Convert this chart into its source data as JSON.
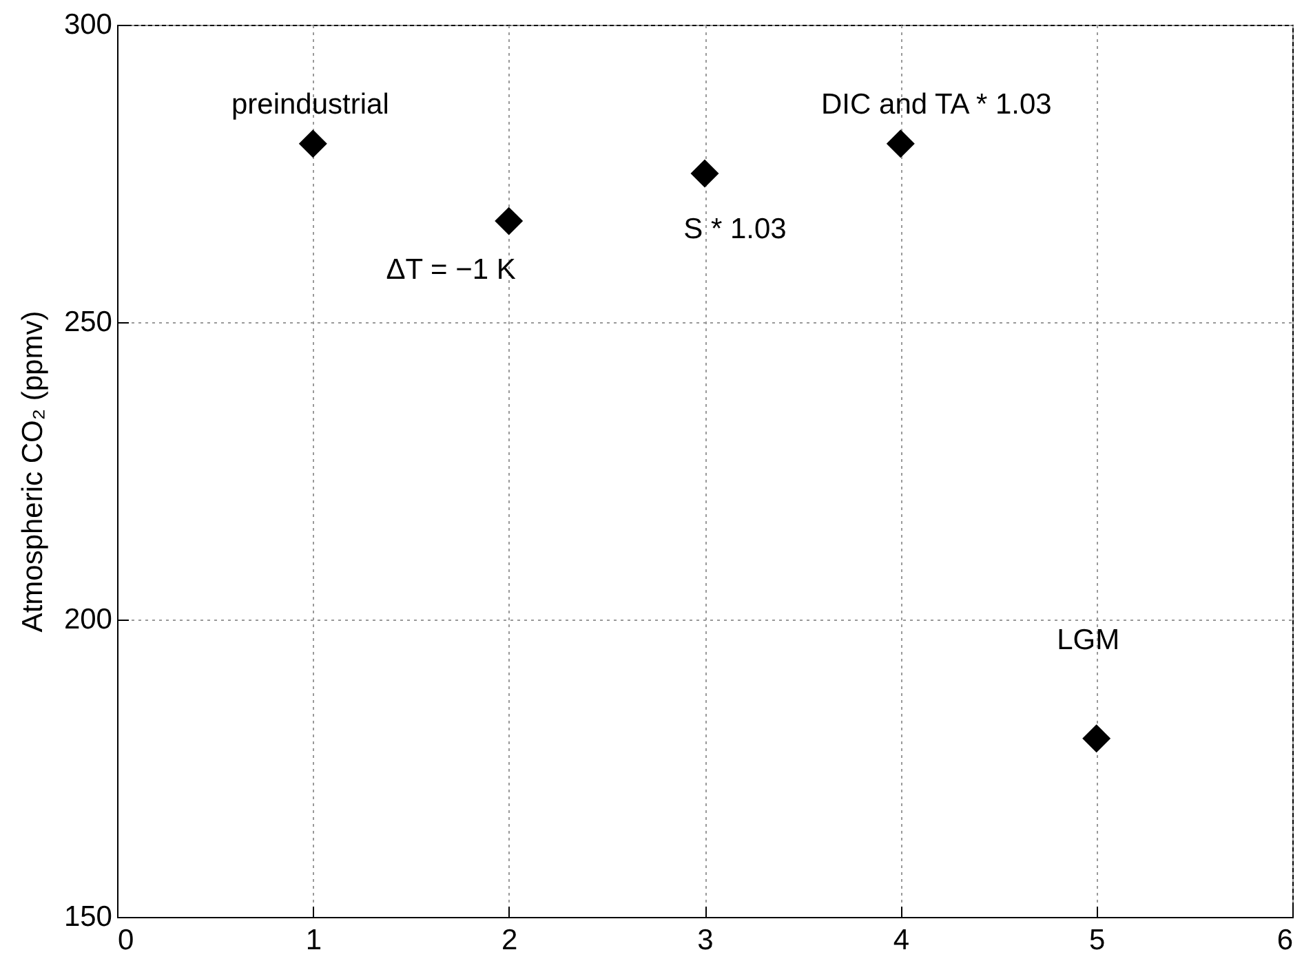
{
  "chart_data": {
    "type": "scatter",
    "ylabel": "Atmospheric CO₂ (ppmv)",
    "x": [
      1,
      2,
      3,
      4,
      5
    ],
    "series": [
      {
        "color": "#000000",
        "values": [
          280,
          267,
          275,
          280,
          180
        ]
      }
    ],
    "xlim": [
      0,
      6
    ],
    "xticks": [
      0,
      1,
      2,
      3,
      4,
      5,
      6
    ],
    "ylim": [
      150,
      300
    ],
    "yticks": [
      150,
      200,
      250,
      300
    ],
    "grid": true,
    "marker": "diamond",
    "annotations": [
      {
        "text": "preindustrial",
        "x": 1,
        "y": 280
      },
      {
        "text": "ΔT = −1 K",
        "x": 2,
        "y": 267
      },
      {
        "text": "S * 1.03",
        "x": 3,
        "y": 275
      },
      {
        "text": "DIC and TA * 1.03",
        "x": 4,
        "y": 280
      },
      {
        "text": "LGM",
        "x": 5,
        "y": 180
      }
    ]
  }
}
